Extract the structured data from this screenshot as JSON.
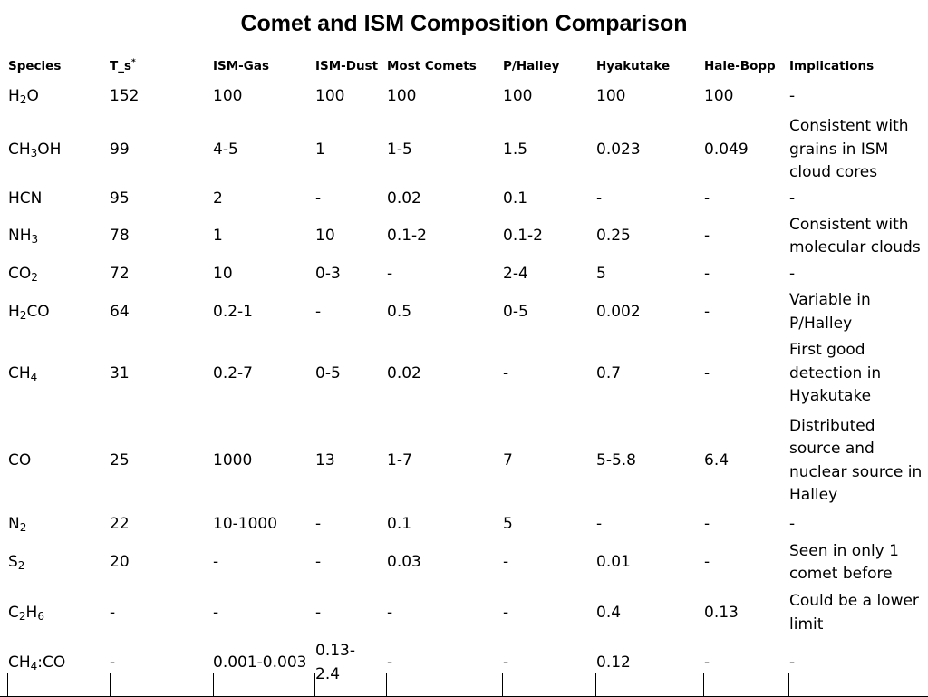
{
  "title": "Comet and ISM Composition Comparison",
  "columns": [
    "Species",
    "T_s",
    "ISM-Gas",
    "ISM-Dust",
    "Most Comets",
    "P/Halley",
    "Hyakutake",
    "Hale-Bopp",
    "Implications"
  ],
  "ts_superscript": "*",
  "rows": [
    {
      "species": [
        [
          "H",
          ""
        ],
        [
          "2",
          "sub"
        ],
        [
          "O",
          ""
        ]
      ],
      "cells": [
        "152",
        "100",
        "100",
        "100",
        "100",
        "100",
        "100",
        "-"
      ],
      "h": 38
    },
    {
      "species": [
        [
          "CH",
          ""
        ],
        [
          "3",
          "sub"
        ],
        [
          "OH",
          ""
        ]
      ],
      "cells": [
        "99",
        "4-5",
        "1",
        "1-5",
        "1.5",
        "0.023",
        "0.049",
        "Consistent with grains in ISM cloud cores"
      ],
      "h": 79
    },
    {
      "species": [
        [
          "HCN",
          ""
        ]
      ],
      "cells": [
        "95",
        "2",
        "-",
        "0.02",
        "0.1",
        "-",
        "-",
        "-"
      ],
      "h": 30
    },
    {
      "species": [
        [
          "NH",
          ""
        ],
        [
          "3",
          "sub"
        ]
      ],
      "cells": [
        "78",
        "1",
        "10",
        "0.1-2",
        "0.1-2",
        "0.25",
        "-",
        "Consistent with molecular clouds"
      ],
      "h": 52
    },
    {
      "species": [
        [
          "CO",
          ""
        ],
        [
          "2",
          "sub"
        ]
      ],
      "cells": [
        "72",
        "10",
        "0-3",
        "-",
        "2-4",
        "5",
        "-",
        "-"
      ],
      "h": 32
    },
    {
      "species": [
        [
          "H",
          ""
        ],
        [
          "2",
          "sub"
        ],
        [
          "CO",
          ""
        ]
      ],
      "cells": [
        "64",
        "0.2-1",
        "-",
        "0.5",
        "0-5",
        "0.002",
        "-",
        "Variable in P/Halley"
      ],
      "h": 51
    },
    {
      "species": [
        [
          "CH",
          ""
        ],
        [
          "4",
          "sub"
        ]
      ],
      "cells": [
        "31",
        "0.2-7",
        "0-5",
        "0.02",
        "-",
        "0.7",
        "-",
        "First good detection in Hyakutake"
      ],
      "h": 85
    },
    {
      "species": [
        [
          "CO",
          ""
        ]
      ],
      "cells": [
        "25",
        "1000",
        "13",
        "1-7",
        "7",
        "5-5.8",
        "6.4",
        "Distributed source and nuclear source in Halley"
      ],
      "h": 107
    },
    {
      "species": [
        [
          "N",
          ""
        ],
        [
          "2",
          "sub"
        ]
      ],
      "cells": [
        "22",
        "10-1000",
        "-",
        "0.1",
        "5",
        "-",
        "-",
        "-"
      ],
      "h": 33
    },
    {
      "species": [
        [
          "S",
          ""
        ],
        [
          "2",
          "sub"
        ]
      ],
      "cells": [
        "20",
        "-",
        "-",
        "0.03",
        "-",
        "0.01",
        "-",
        "Seen in only 1 comet before"
      ],
      "h": 52
    },
    {
      "species": [
        [
          "C",
          ""
        ],
        [
          "2",
          "sub"
        ],
        [
          "H",
          ""
        ],
        [
          "6",
          "sub"
        ]
      ],
      "cells": [
        "-",
        "-",
        "-",
        "-",
        "-",
        "0.4",
        "0.13",
        "Could be a lower limit"
      ],
      "h": 59
    },
    {
      "species": [
        [
          "CH",
          ""
        ],
        [
          "4",
          "sub"
        ],
        [
          ":CO",
          ""
        ]
      ],
      "cells": [
        "-",
        "0.001-0.003",
        "0.13-2.4",
        "-",
        "-",
        "0.12",
        "-",
        "-"
      ],
      "h": 27
    }
  ]
}
